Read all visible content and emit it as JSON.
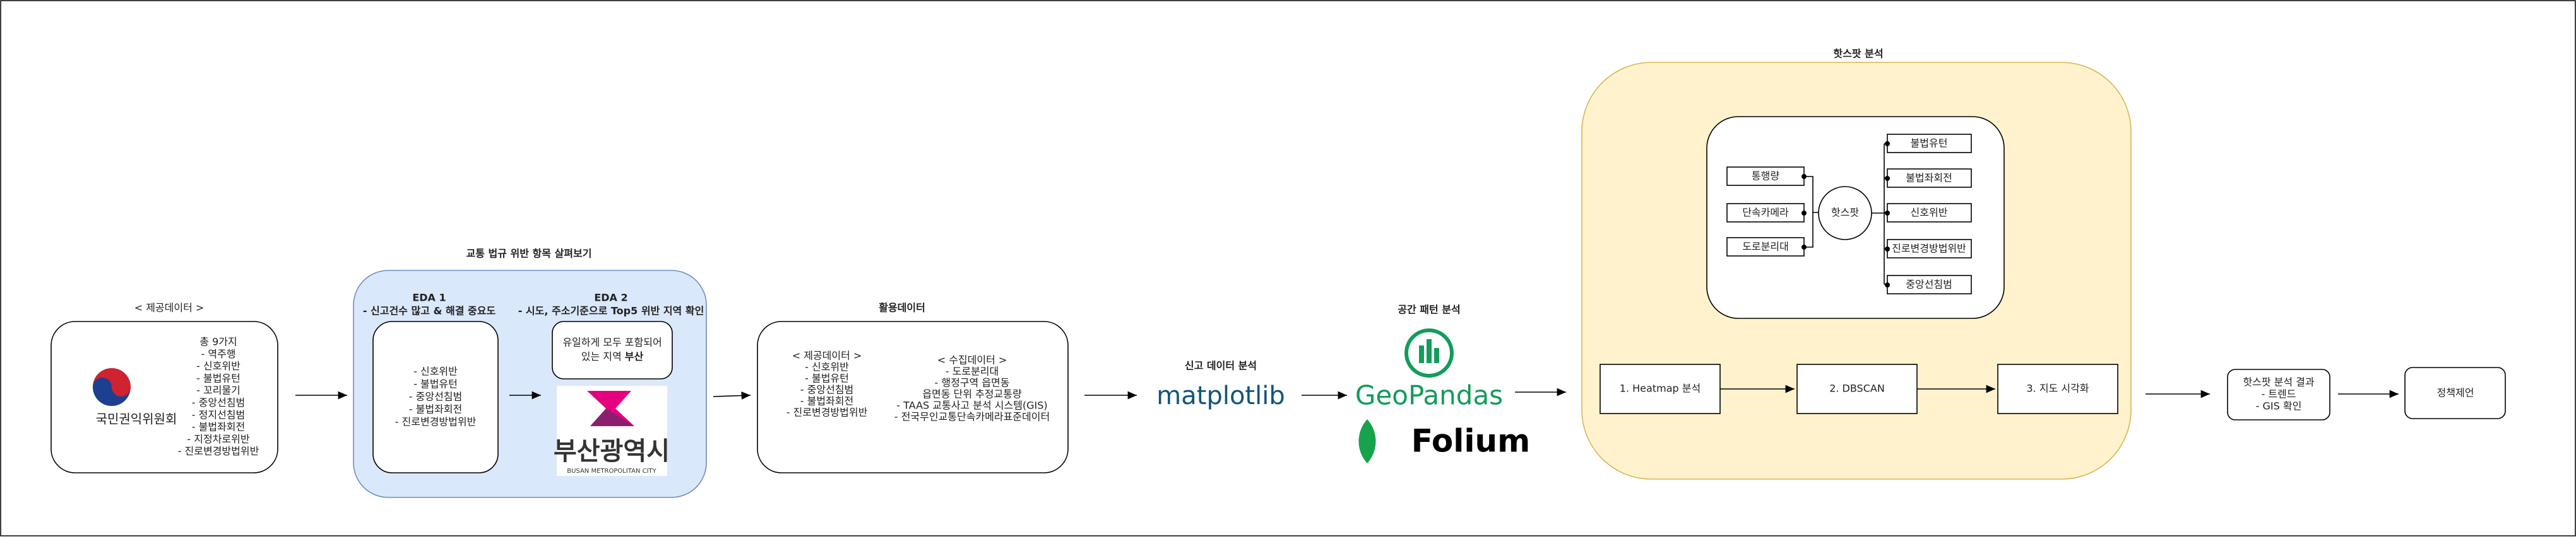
{
  "source": {
    "label": "< 제공데이터 >",
    "org": "국민권익위원회",
    "items": [
      "총 9가지",
      "- 역주행",
      "- 신호위반",
      "- 불법유턴",
      "- 꼬리물기",
      "- 중앙선침범",
      "- 정지선침범",
      "- 불법좌회전",
      "- 지정차로위반",
      "- 진로변경방법위반"
    ]
  },
  "eda": {
    "title": "교통 법규 위반 항목 살펴보기",
    "eda1": {
      "title": "EDA 1",
      "subtitle": "- 신고건수 많고 & 해결 중요도",
      "items": [
        "- 신호위반",
        "- 불법유턴",
        "- 중앙선침범",
        "- 불법좌회전",
        "- 진로변경방법위반"
      ]
    },
    "eda2": {
      "title": "EDA 2",
      "subtitle": "- 시도, 주소기준으로 Top5 위반 지역 확인",
      "note_line1": "유일하게 모두 포함되어",
      "note_line2": "있는 지역",
      "note_bold": "부산",
      "logo_ko": "부산광역시",
      "logo_en": "BUSAN METROPOLITAN CITY"
    }
  },
  "used_data": {
    "title": "활용데이터",
    "provided": [
      "< 제공데이터 >",
      "- 신호위반",
      "- 불법유턴",
      "- 중앙선침범",
      "- 불법좌회전",
      "- 진로변경방법위반"
    ],
    "collected": [
      "< 수집데이터 >",
      "- 도로분리대",
      "- 행정구역 읍면동",
      "읍면동 단위 추정교통량",
      "- TAAS 교통사고 분석 시스템(GIS)",
      "- 전국무인교통단속카메라표준데이터"
    ]
  },
  "report_analysis": {
    "title": "신고 데이터 분석",
    "tool": "matplotlib"
  },
  "spatial": {
    "title": "공간 패턴 분석",
    "tools": [
      "GeoPandas",
      "Folium"
    ]
  },
  "hotspot": {
    "title": "핫스팟 분석",
    "inputs": [
      "통행량",
      "단속카메라",
      "도로분리대"
    ],
    "center": "핫스팟",
    "outputs": [
      "불법유턴",
      "불법좌회전",
      "신호위반",
      "진로변경방법위반",
      "중앙선침범"
    ],
    "steps": [
      "1. Heatmap 분석",
      "2. DBSCAN",
      "3. 지도 시각화"
    ]
  },
  "result": [
    "핫스팟 분석 결과",
    "- 트렌드",
    "- GIS 확인"
  ],
  "policy": "정책제언"
}
